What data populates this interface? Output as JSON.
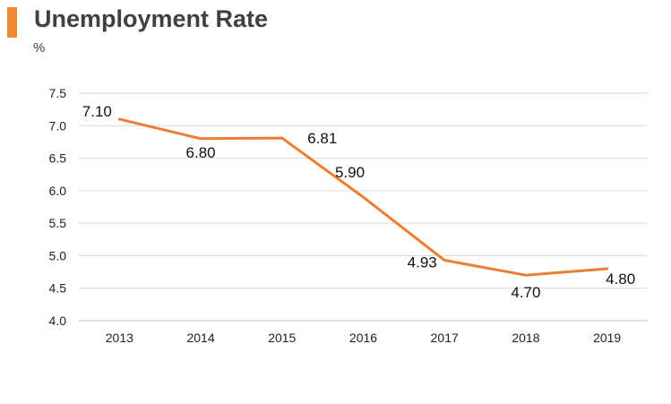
{
  "header": {
    "title": "Unemployment Rate",
    "unit": "%",
    "accent_color": "#f08a32"
  },
  "chart_data": {
    "type": "line",
    "title": "Unemployment Rate",
    "ylabel": "%",
    "xlabel": "",
    "categories": [
      "2013",
      "2014",
      "2015",
      "2016",
      "2017",
      "2018",
      "2019"
    ],
    "series": [
      {
        "values": [
          7.1,
          6.8,
          6.81,
          5.9,
          4.93,
          4.7,
          4.8
        ],
        "data_labels": [
          "7.10",
          "6.80",
          "6.81",
          "5.90",
          "4.93",
          "4.70",
          "4.80"
        ],
        "color": "#ed7d31"
      }
    ],
    "y_ticks": [
      "4.0",
      "4.5",
      "5.0",
      "5.5",
      "6.0",
      "6.5",
      "7.0",
      "7.5"
    ],
    "ylim": [
      4.0,
      7.5
    ],
    "grid": true,
    "legend": "none"
  }
}
